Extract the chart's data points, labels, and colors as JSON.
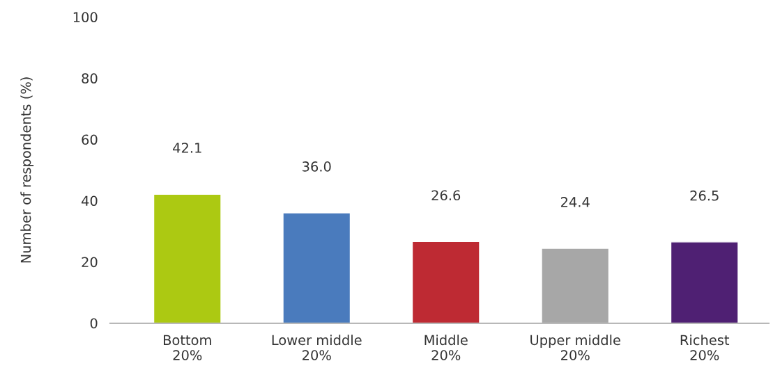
{
  "chart_data": {
    "type": "bar",
    "ylabel": "Number of respondents (%)",
    "categories": [
      "Bottom\n20%",
      "Lower middle\n20%",
      "Middle\n20%",
      "Upper middle\n20%",
      "Richest\n20%"
    ],
    "values": [
      42.1,
      36.0,
      26.6,
      24.4,
      26.5
    ],
    "colors": [
      "#acc912",
      "#4a7bbd",
      "#be2a33",
      "#a7a7a7",
      "#4f2073"
    ],
    "value_labels": [
      "42.1",
      "36.0",
      "26.6",
      "24.4",
      "26.5"
    ],
    "ylim": [
      0,
      100
    ],
    "yticks": [
      0,
      20,
      40,
      60,
      80,
      100
    ],
    "grid": false,
    "legend": false
  }
}
